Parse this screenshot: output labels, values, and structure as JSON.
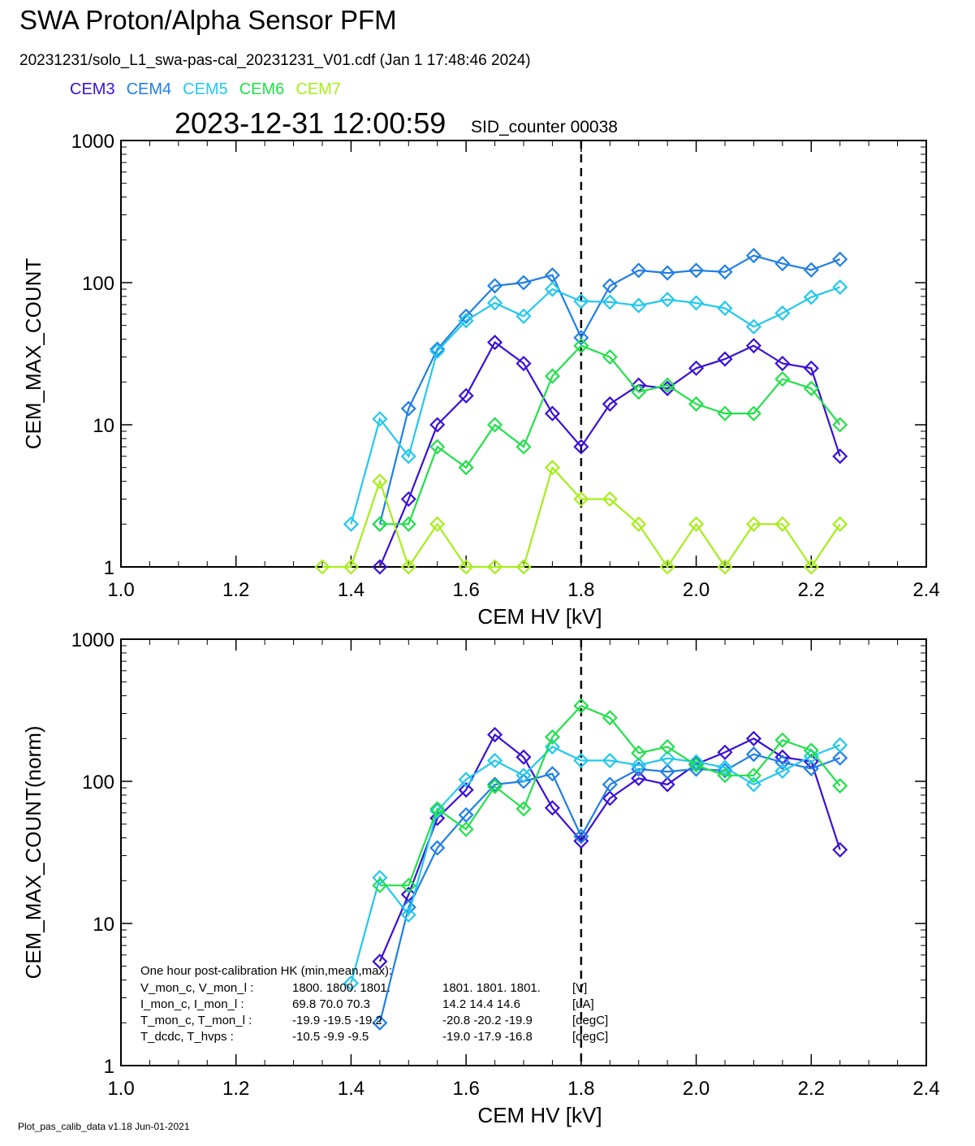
{
  "header": {
    "title": "SWA Proton/Alpha Sensor PFM",
    "subtitle": "20231231/solo_L1_swa-pas-cal_20231231_V01.cdf  (Jan  1 17:48:46 2024)",
    "timestamp": "2023-12-31 12:00:59",
    "sid_counter": "SID_counter 00038"
  },
  "legend": [
    {
      "name": "CEM3",
      "color": "#3a10d8"
    },
    {
      "name": "CEM4",
      "color": "#1f7fe6"
    },
    {
      "name": "CEM5",
      "color": "#22c8ee"
    },
    {
      "name": "CEM6",
      "color": "#22e04a"
    },
    {
      "name": "CEM7",
      "color": "#a6ee1a"
    }
  ],
  "footer": "Plot_pas_calib_data v1.18 Jun-01-2021",
  "chart_data": [
    {
      "type": "line",
      "xlabel": "CEM HV [kV]",
      "ylabel": "CEM_MAX_COUNT",
      "xlim": [
        1.0,
        2.4
      ],
      "ylim": [
        1,
        1000
      ],
      "yscale": "log",
      "xticks": [
        "1.0",
        "1.2",
        "1.4",
        "1.6",
        "1.8",
        "2.0",
        "2.2",
        "2.4"
      ],
      "yticks": [
        "1",
        "10",
        "100",
        "1000"
      ],
      "vline": 1.8,
      "series": [
        {
          "name": "CEM3",
          "color": "#3a10d8",
          "points": [
            [
              1.45,
              1
            ],
            [
              1.5,
              3
            ],
            [
              1.55,
              10
            ],
            [
              1.6,
              16
            ],
            [
              1.65,
              38
            ],
            [
              1.7,
              27
            ],
            [
              1.75,
              12
            ],
            [
              1.8,
              7
            ],
            [
              1.85,
              14
            ],
            [
              1.9,
              19
            ],
            [
              1.95,
              18
            ],
            [
              2.0,
              25
            ],
            [
              2.05,
              29
            ],
            [
              2.1,
              36
            ],
            [
              2.15,
              27
            ],
            [
              2.2,
              25
            ],
            [
              2.25,
              6
            ]
          ]
        },
        {
          "name": "CEM4",
          "color": "#1f7fe6",
          "points": [
            [
              1.45,
              2
            ],
            [
              1.5,
              13
            ],
            [
              1.55,
              34
            ],
            [
              1.6,
              58
            ],
            [
              1.65,
              95
            ],
            [
              1.7,
              100
            ],
            [
              1.75,
              113
            ],
            [
              1.8,
              41
            ],
            [
              1.85,
              95
            ],
            [
              1.9,
              122
            ],
            [
              1.95,
              117
            ],
            [
              2.0,
              122
            ],
            [
              2.05,
              119
            ],
            [
              2.1,
              155
            ],
            [
              2.15,
              136
            ],
            [
              2.2,
              123
            ],
            [
              2.25,
              146
            ]
          ]
        },
        {
          "name": "CEM5",
          "color": "#22c8ee",
          "points": [
            [
              1.4,
              2
            ],
            [
              1.45,
              11
            ],
            [
              1.5,
              6
            ],
            [
              1.55,
              33
            ],
            [
              1.6,
              54
            ],
            [
              1.65,
              72
            ],
            [
              1.7,
              58
            ],
            [
              1.75,
              90
            ],
            [
              1.8,
              74
            ],
            [
              1.85,
              73
            ],
            [
              1.9,
              69
            ],
            [
              1.95,
              76
            ],
            [
              2.0,
              72
            ],
            [
              2.05,
              66
            ],
            [
              2.1,
              49
            ],
            [
              2.15,
              61
            ],
            [
              2.2,
              79
            ],
            [
              2.25,
              93
            ]
          ]
        },
        {
          "name": "CEM6",
          "color": "#22e04a",
          "points": [
            [
              1.45,
              2
            ],
            [
              1.5,
              2
            ],
            [
              1.55,
              7
            ],
            [
              1.6,
              5
            ],
            [
              1.65,
              10
            ],
            [
              1.7,
              7
            ],
            [
              1.75,
              22
            ],
            [
              1.8,
              36
            ],
            [
              1.85,
              30
            ],
            [
              1.9,
              17
            ],
            [
              1.95,
              19
            ],
            [
              2.0,
              14
            ],
            [
              2.05,
              12
            ],
            [
              2.1,
              12
            ],
            [
              2.15,
              21
            ],
            [
              2.2,
              18
            ],
            [
              2.25,
              10
            ]
          ]
        },
        {
          "name": "CEM7",
          "color": "#a6ee1a",
          "points": [
            [
              1.35,
              1
            ],
            [
              1.4,
              1
            ],
            [
              1.45,
              4
            ],
            [
              1.5,
              1
            ],
            [
              1.55,
              2
            ],
            [
              1.6,
              1
            ],
            [
              1.65,
              1
            ],
            [
              1.7,
              1
            ],
            [
              1.75,
              5
            ],
            [
              1.8,
              3
            ],
            [
              1.85,
              3
            ],
            [
              1.9,
              2
            ],
            [
              1.95,
              1
            ],
            [
              2.0,
              2
            ],
            [
              2.05,
              1
            ],
            [
              2.1,
              2
            ],
            [
              2.15,
              2
            ],
            [
              2.2,
              1
            ],
            [
              2.25,
              2
            ]
          ]
        }
      ]
    },
    {
      "type": "line",
      "xlabel": "CEM HV [kV]",
      "ylabel": "CEM_MAX_COUNT(norm)",
      "xlim": [
        1.0,
        2.4
      ],
      "ylim": [
        1,
        1000
      ],
      "yscale": "log",
      "xticks": [
        "1.0",
        "1.2",
        "1.4",
        "1.6",
        "1.8",
        "2.0",
        "2.2",
        "2.4"
      ],
      "yticks": [
        "1",
        "10",
        "100",
        "1000"
      ],
      "vline": 1.8,
      "series": [
        {
          "name": "CEM3",
          "color": "#3a10d8",
          "points": [
            [
              1.45,
              5.4
            ],
            [
              1.5,
              16
            ],
            [
              1.55,
              55
            ],
            [
              1.6,
              87
            ],
            [
              1.65,
              213
            ],
            [
              1.7,
              148
            ],
            [
              1.75,
              65
            ],
            [
              1.8,
              38
            ],
            [
              1.85,
              76
            ],
            [
              1.9,
              105
            ],
            [
              1.95,
              95
            ],
            [
              2.0,
              132
            ],
            [
              2.05,
              160
            ],
            [
              2.1,
              200
            ],
            [
              2.15,
              148
            ],
            [
              2.2,
              138
            ],
            [
              2.25,
              33
            ]
          ]
        },
        {
          "name": "CEM4",
          "color": "#1f7fe6",
          "points": [
            [
              1.45,
              2
            ],
            [
              1.5,
              13
            ],
            [
              1.55,
              34
            ],
            [
              1.6,
              58
            ],
            [
              1.65,
              95
            ],
            [
              1.7,
              100
            ],
            [
              1.75,
              113
            ],
            [
              1.8,
              41
            ],
            [
              1.85,
              95
            ],
            [
              1.9,
              122
            ],
            [
              1.95,
              117
            ],
            [
              2.0,
              122
            ],
            [
              2.05,
              119
            ],
            [
              2.1,
              155
            ],
            [
              2.15,
              136
            ],
            [
              2.2,
              123
            ],
            [
              2.25,
              146
            ]
          ]
        },
        {
          "name": "CEM5",
          "color": "#22c8ee",
          "points": [
            [
              1.4,
              3.8
            ],
            [
              1.45,
              21
            ],
            [
              1.5,
              11.5
            ],
            [
              1.55,
              62
            ],
            [
              1.6,
              103
            ],
            [
              1.65,
              140
            ],
            [
              1.7,
              110
            ],
            [
              1.75,
              175
            ],
            [
              1.8,
              140
            ],
            [
              1.85,
              140
            ],
            [
              1.9,
              130
            ],
            [
              1.95,
              145
            ],
            [
              2.0,
              137
            ],
            [
              2.05,
              125
            ],
            [
              2.1,
              95
            ],
            [
              2.15,
              118
            ],
            [
              2.2,
              150
            ],
            [
              2.25,
              180
            ]
          ]
        },
        {
          "name": "CEM6",
          "color": "#22e04a",
          "points": [
            [
              1.45,
              18.5
            ],
            [
              1.5,
              18.5
            ],
            [
              1.55,
              64
            ],
            [
              1.6,
              46
            ],
            [
              1.65,
              92
            ],
            [
              1.7,
              64
            ],
            [
              1.75,
              205
            ],
            [
              1.8,
              340
            ],
            [
              1.85,
              280
            ],
            [
              1.9,
              158
            ],
            [
              1.95,
              175
            ],
            [
              2.0,
              130
            ],
            [
              2.05,
              110
            ],
            [
              2.1,
              110
            ],
            [
              2.15,
              195
            ],
            [
              2.2,
              165
            ],
            [
              2.25,
              93
            ]
          ]
        }
      ]
    }
  ],
  "hk_text": {
    "heading": "One hour post-calibration HK (min,mean,max):",
    "rows": [
      {
        "label": "V_mon_c, V_mon_l :",
        "c": "1800.   1800.  1801.",
        "l": "1801.  1801.  1801.",
        "unit": "[V]"
      },
      {
        "label": "I_mon_c,  I_mon_l :",
        "c": "69.8   70.0   70.3",
        "l": "14.2   14.4   14.6",
        "unit": "[uA]"
      },
      {
        "label": "T_mon_c, T_mon_l :",
        "c": "-19.9  -19.5  -19.2",
        "l": "-20.8  -20.2  -19.9",
        "unit": "[degC]"
      },
      {
        "label": "T_dcdc,    T_hvps :",
        "c": "-10.5   -9.9   -9.5",
        "l": "-19.0  -17.9  -16.8",
        "unit": "[degC]"
      }
    ]
  }
}
